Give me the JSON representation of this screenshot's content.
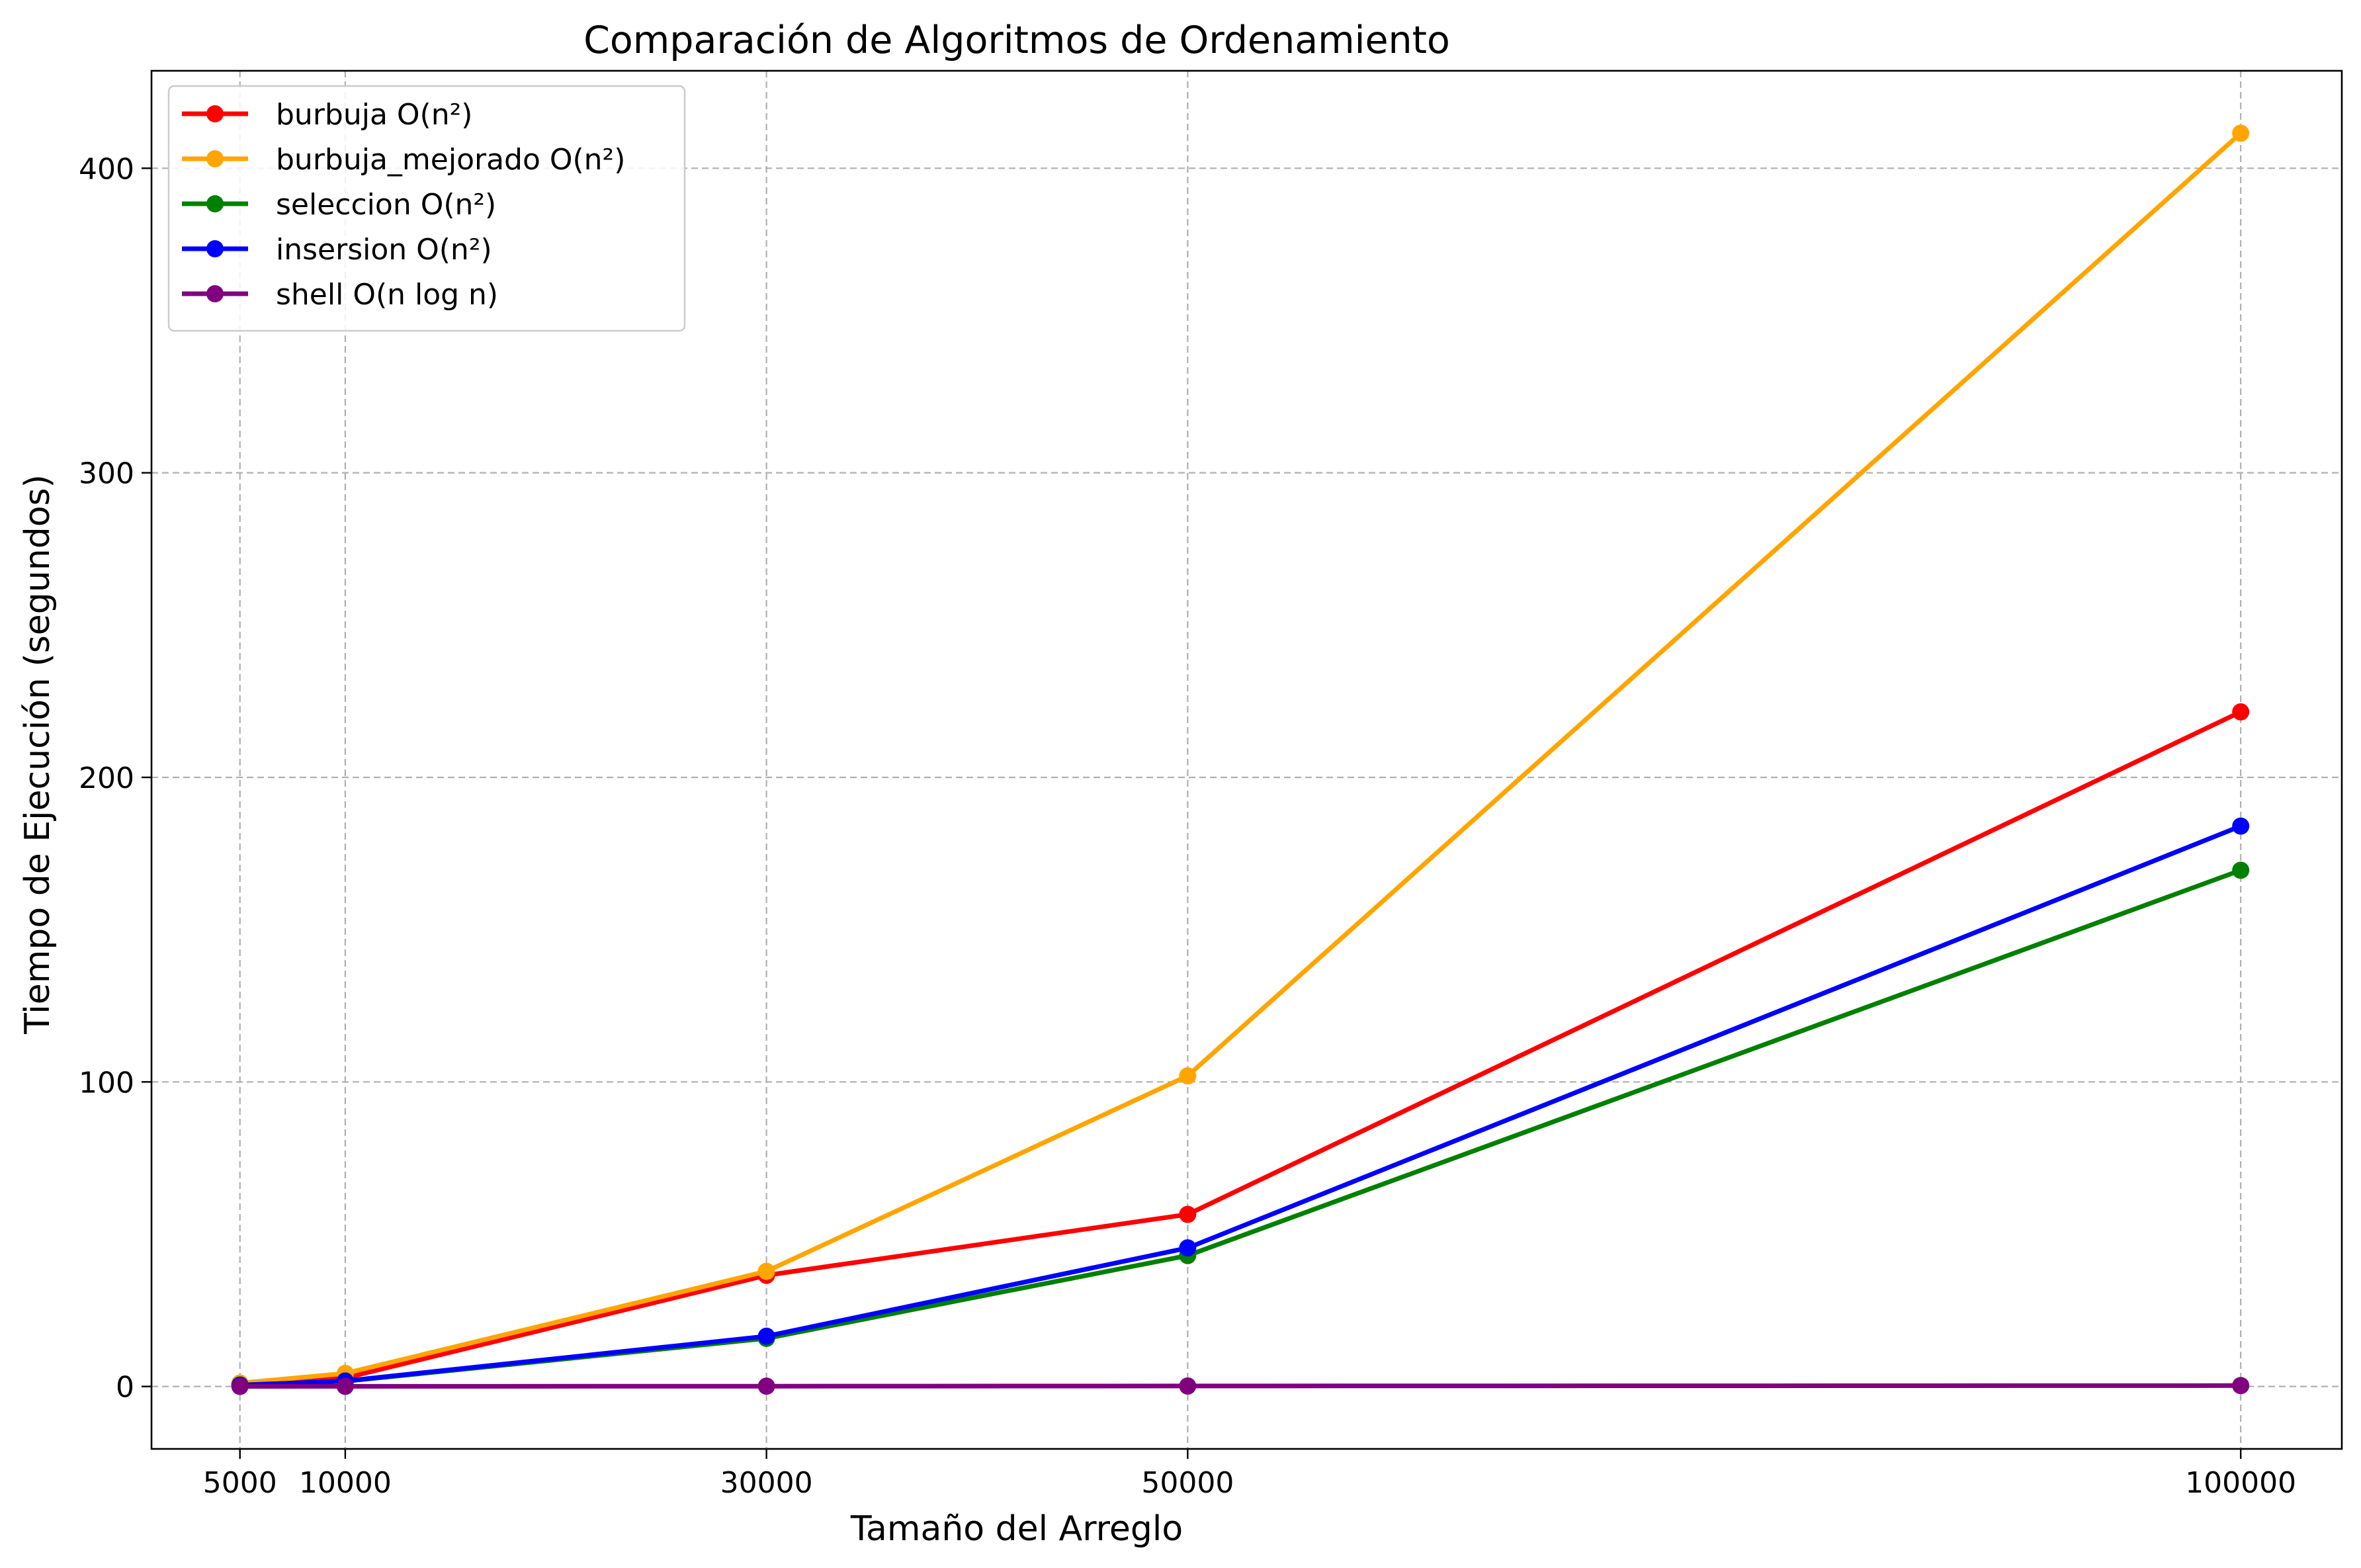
{
  "chart_data": {
    "type": "line",
    "title": "Comparación de Algoritmos de Ordenamiento",
    "xlabel": "Tamaño del Arreglo",
    "ylabel": "Tiempo de Ejecución (segundos)",
    "x": [
      5000,
      10000,
      30000,
      50000,
      100000
    ],
    "x_tick_labels": [
      "5000",
      "10000",
      "30000",
      "50000",
      "100000"
    ],
    "xlim": [
      800,
      104800
    ],
    "ylim": [
      -20.5,
      432
    ],
    "y_ticks": [
      0,
      100,
      200,
      300,
      400
    ],
    "y_tick_labels": [
      "0",
      "100",
      "200",
      "300",
      "400"
    ],
    "grid": true,
    "legend_position": "upper-left",
    "series": [
      {
        "name": "burbuja O(n²)",
        "color": "#ff0000",
        "values": [
          0.8,
          2.8,
          36.5,
          56.5,
          221.5
        ]
      },
      {
        "name": "burbuja_mejorado O(n²)",
        "color": "#ffa500",
        "values": [
          1.1,
          4.3,
          37.8,
          102.0,
          411.5
        ]
      },
      {
        "name": "seleccion O(n²)",
        "color": "#008000",
        "values": [
          0.5,
          1.7,
          15.8,
          43.0,
          169.5
        ]
      },
      {
        "name": "insersion O(n²)",
        "color": "#0000ff",
        "values": [
          0.4,
          1.8,
          16.5,
          45.5,
          184.0
        ]
      },
      {
        "name": "shell O(n log n)",
        "color": "#800080",
        "values": [
          0.02,
          0.05,
          0.1,
          0.15,
          0.3
        ]
      }
    ]
  }
}
